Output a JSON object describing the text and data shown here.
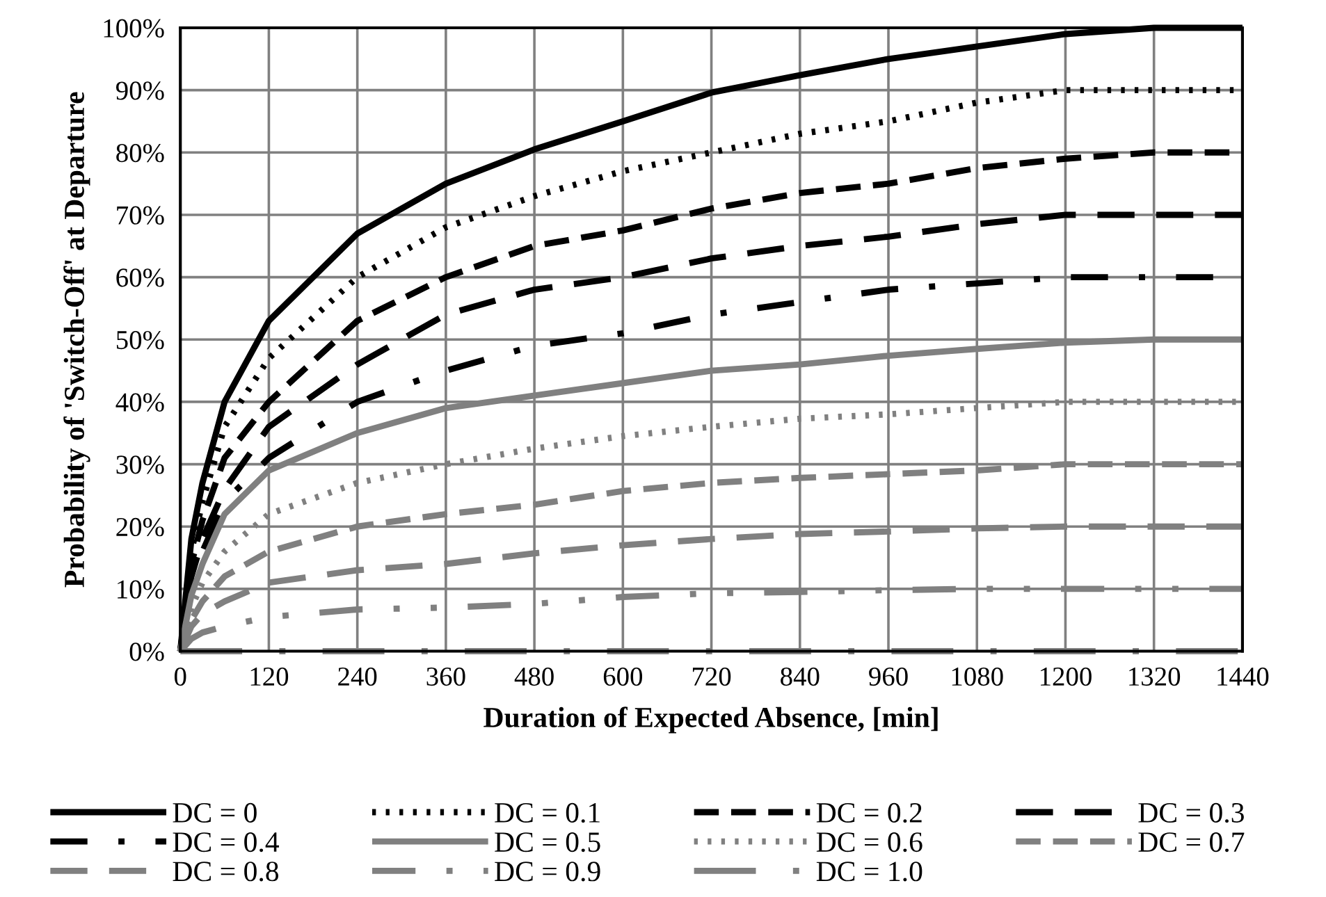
{
  "chart_data": {
    "type": "line",
    "xlabel": "Duration of Expected Absence, [min]",
    "ylabel": "Probability of 'Switch-Off' at Departure",
    "x": [
      0,
      15,
      30,
      60,
      120,
      240,
      360,
      480,
      600,
      720,
      840,
      960,
      1080,
      1200,
      1320,
      1440
    ],
    "xlim": [
      0,
      1440
    ],
    "xticks": [
      0,
      120,
      240,
      360,
      480,
      600,
      720,
      840,
      960,
      1080,
      1200,
      1320,
      1440
    ],
    "ylim": [
      0,
      100
    ],
    "yticks": [
      {
        "value": 0,
        "label": "0%"
      },
      {
        "value": 10,
        "label": "10%"
      },
      {
        "value": 20,
        "label": "20%"
      },
      {
        "value": 30,
        "label": "30%"
      },
      {
        "value": 40,
        "label": "40%"
      },
      {
        "value": 50,
        "label": "50%"
      },
      {
        "value": 60,
        "label": "60%"
      },
      {
        "value": 70,
        "label": "70%"
      },
      {
        "value": 80,
        "label": "80%"
      },
      {
        "value": 90,
        "label": "90%"
      },
      {
        "value": 100,
        "label": "100%"
      }
    ],
    "grid": true,
    "legend": "bottom",
    "marker": "none",
    "series": [
      {
        "name": "DC = 0",
        "color": "#000000",
        "line_style": "solid",
        "values": [
          0,
          18,
          27,
          40,
          53,
          67,
          75,
          80.5,
          85,
          89.6,
          92.4,
          95,
          97,
          99,
          100,
          100
        ]
      },
      {
        "name": "DC = 0.1",
        "color": "#000000",
        "line_style": "dotted",
        "values": [
          0,
          16,
          24,
          36,
          47,
          60,
          68,
          73,
          77,
          80,
          83,
          85,
          88,
          90,
          90,
          90
        ]
      },
      {
        "name": "DC = 0.2",
        "color": "#000000",
        "line_style": "dashed",
        "values": [
          0,
          14,
          21,
          31,
          40,
          53,
          60,
          65,
          67.5,
          71,
          73.5,
          75,
          77.5,
          79,
          80,
          80
        ]
      },
      {
        "name": "DC = 0.3",
        "color": "#000000",
        "line_style": "longdash",
        "values": [
          0,
          12,
          18,
          26,
          36,
          46,
          54,
          58,
          60,
          63,
          65,
          66.5,
          68.5,
          70,
          70,
          70
        ]
      },
      {
        "name": "DC = 0.4",
        "color": "#000000",
        "line_style": "dashdot",
        "values": [
          0,
          10,
          16,
          24,
          31,
          40,
          45,
          49,
          51,
          54,
          56,
          58,
          59,
          60,
          60,
          60
        ]
      },
      {
        "name": "DC = 0.5",
        "color": "#808080",
        "line_style": "solid",
        "values": [
          0,
          9,
          14,
          22,
          29,
          35,
          39,
          41,
          43,
          45,
          46,
          47.4,
          48.5,
          49.5,
          50,
          50
        ]
      },
      {
        "name": "DC = 0.6",
        "color": "#808080",
        "line_style": "dotted",
        "values": [
          0,
          7,
          11,
          16,
          22,
          27,
          30,
          32.5,
          34.5,
          36,
          37.3,
          38,
          39,
          40,
          40,
          40
        ]
      },
      {
        "name": "DC = 0.7",
        "color": "#808080",
        "line_style": "dashed",
        "values": [
          0,
          5,
          8,
          12,
          16,
          20,
          22,
          23.5,
          25.7,
          27,
          27.8,
          28.4,
          29,
          30,
          30,
          30
        ]
      },
      {
        "name": "DC = 0.8",
        "color": "#808080",
        "line_style": "longdash",
        "values": [
          0,
          4,
          6,
          8,
          11,
          13,
          14,
          15.7,
          17,
          18,
          18.8,
          19.2,
          19.7,
          20,
          20,
          20
        ]
      },
      {
        "name": "DC = 0.9",
        "color": "#808080",
        "line_style": "longdashdotdot",
        "values": [
          0,
          2,
          3,
          4,
          5.5,
          6.7,
          7,
          7.6,
          8.7,
          9.3,
          9.5,
          9.8,
          10,
          10,
          10,
          10
        ]
      },
      {
        "name": "DC = 1.0",
        "color": "#808080",
        "line_style": "longdashdot",
        "values": [
          0,
          0,
          0,
          0,
          0,
          0,
          0,
          0,
          0,
          0,
          0,
          0,
          0,
          0,
          0,
          0
        ]
      }
    ]
  }
}
